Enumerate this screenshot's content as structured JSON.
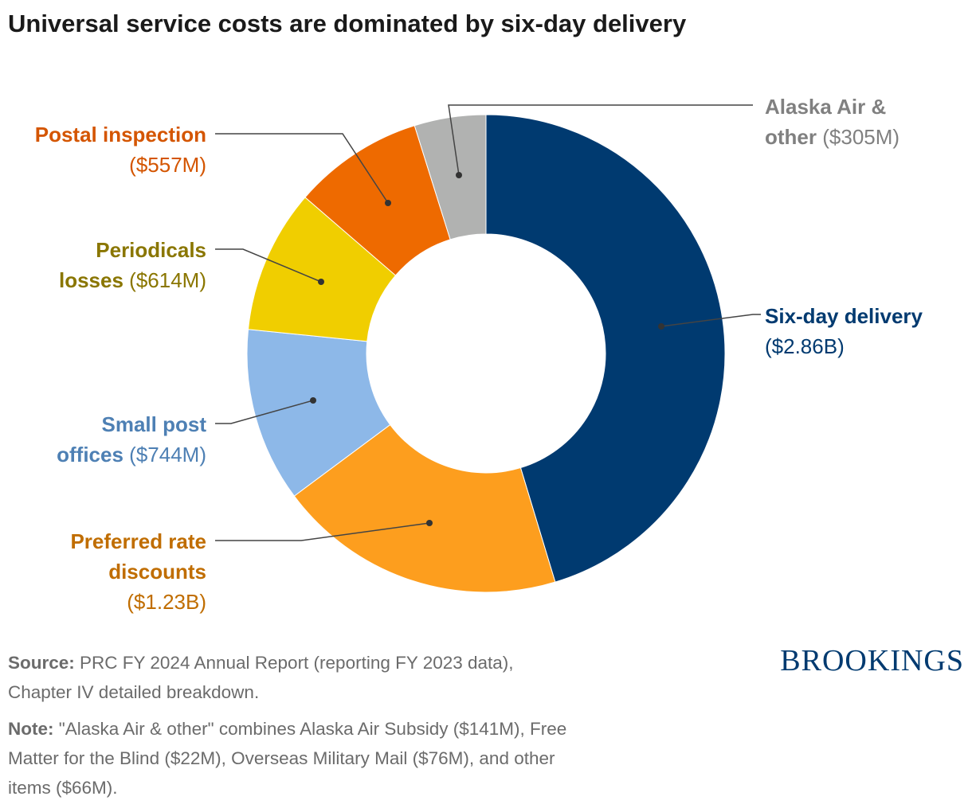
{
  "title": "Universal service costs are dominated by six-day delivery",
  "chart_data": {
    "type": "pie",
    "donut": true,
    "title": "Universal service costs are dominated by six-day delivery",
    "unit": "$M",
    "slices": [
      {
        "name": "Six-day delivery",
        "value_label": "($2.86B)",
        "value": 2860,
        "color": "#003a70",
        "label_color": "#003a70"
      },
      {
        "name": "Preferred rate discounts",
        "value_label": "($1.23B)",
        "value": 1230,
        "color": "#fd9e1e",
        "label_color": "#c06d00"
      },
      {
        "name": "Small post offices",
        "value_label": "($744M)",
        "value": 744,
        "color": "#8db8e8",
        "label_color": "#4e80b4"
      },
      {
        "name": "Periodicals losses",
        "value_label": "($614M)",
        "value": 614,
        "color": "#f0ce00",
        "label_color": "#8a7600"
      },
      {
        "name": "Postal inspection",
        "value_label": "($557M)",
        "value": 557,
        "color": "#ee6a00",
        "label_color": "#d45500"
      },
      {
        "name": "Alaska Air & other",
        "value_label": "($305M)",
        "value": 305,
        "color": "#b1b2b1",
        "label_color": "#808080"
      }
    ]
  },
  "labels": {
    "six_day": {
      "name1": "Six-day delivery",
      "value": "($2.86B)"
    },
    "preferred": {
      "name1": "Preferred rate",
      "name2": "discounts",
      "value": "($1.23B)"
    },
    "small": {
      "name1": "Small post",
      "name2": "offices",
      "value": "($744M)"
    },
    "periodicals": {
      "name1": "Periodicals",
      "name2": "losses",
      "value": "($614M)"
    },
    "inspection": {
      "name1": "Postal inspection",
      "value": "($557M)"
    },
    "alaska": {
      "name1": "Alaska Air &",
      "name2": "other",
      "value": "($305M)"
    }
  },
  "footer": {
    "source_label": "Source:",
    "source_line1": "PRC FY 2024 Annual Report (reporting FY 2023 data),",
    "source_line2": "Chapter IV detailed breakdown.",
    "note_label": "Note:",
    "note_line1": "\"Alaska Air & other\" combines Alaska Air Subsidy ($141M), Free",
    "note_line2": "Matter for the Blind ($22M), Overseas Military Mail ($76M), and other",
    "note_line3": "items ($66M)."
  },
  "logo": "BROOKINGS"
}
